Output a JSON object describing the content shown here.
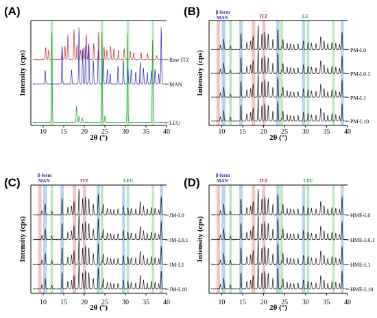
{
  "colors": {
    "raw_itz": "#e0202a",
    "man": "#1f1fd8",
    "leu": "#10b020",
    "black": "#111111",
    "itz_band": "#f3b8b8",
    "man_band": "#aacdee",
    "leu_band": "#a8e6b0",
    "annot_blue": "#2a2ad0",
    "annot_red": "#e02020",
    "annot_green": "#20b040"
  },
  "chart_data": [
    {
      "panel": "(A)",
      "type": "line",
      "xlabel": "2θ (°)",
      "ylabel": "Intensity (cps)",
      "xlim": [
        7,
        40
      ],
      "xticks": [
        10,
        15,
        20,
        25,
        30,
        35,
        40
      ],
      "grid": false,
      "series": [
        {
          "name": "Raw ITZ",
          "color": "raw_itz",
          "offset": 3,
          "peaks": [
            [
              10.6,
              0.45
            ],
            [
              11.3,
              0.35
            ],
            [
              14.6,
              0.4
            ],
            [
              15.3,
              0.5
            ],
            [
              16.0,
              0.9
            ],
            [
              17.5,
              1.1
            ],
            [
              18.2,
              0.55
            ],
            [
              19.1,
              0.35
            ],
            [
              19.9,
              0.45
            ],
            [
              20.5,
              0.9
            ],
            [
              21.0,
              0.5
            ],
            [
              22.3,
              0.6
            ],
            [
              23.5,
              1.0
            ],
            [
              24.8,
              0.45
            ],
            [
              25.5,
              0.35
            ],
            [
              26.4,
              0.5
            ],
            [
              27.2,
              0.4
            ],
            [
              28.3,
              0.35
            ],
            [
              29.7,
              0.4
            ],
            [
              31.2,
              0.3
            ],
            [
              32.0,
              0.25
            ],
            [
              33.8,
              0.25
            ],
            [
              35.4,
              0.2
            ],
            [
              37.6,
              0.15
            ]
          ]
        },
        {
          "name": "MAN",
          "color": "man",
          "offset": 1.8,
          "peaks": [
            [
              10.5,
              0.45
            ],
            [
              14.6,
              1.3
            ],
            [
              16.9,
              0.5
            ],
            [
              18.7,
              1.9
            ],
            [
              19.6,
              1.2
            ],
            [
              20.3,
              1.3
            ],
            [
              21.1,
              1.4
            ],
            [
              22.2,
              0.8
            ],
            [
              23.4,
              1.2
            ],
            [
              24.6,
              0.9
            ],
            [
              25.6,
              0.5
            ],
            [
              26.3,
              0.35
            ],
            [
              28.2,
              0.6
            ],
            [
              29.5,
              0.8
            ],
            [
              30.6,
              0.55
            ],
            [
              31.4,
              0.5
            ],
            [
              32.5,
              0.4
            ],
            [
              33.6,
              0.75
            ],
            [
              34.4,
              0.55
            ],
            [
              35.3,
              0.4
            ],
            [
              36.3,
              0.45
            ],
            [
              37.2,
              0.5
            ],
            [
              38.1,
              0.35
            ],
            [
              38.7,
              1.9
            ]
          ]
        },
        {
          "name": "LEU",
          "color": "leu",
          "offset": 0,
          "peaks": [
            [
              12.1,
              3.6
            ],
            [
              18.1,
              0.65
            ],
            [
              18.7,
              0.25
            ],
            [
              19.5,
              0.2
            ],
            [
              24.3,
              3.5
            ],
            [
              25.0,
              0.25
            ],
            [
              30.5,
              3.4
            ],
            [
              36.6,
              3.3
            ]
          ]
        }
      ]
    },
    {
      "panel": "(B)",
      "type": "line",
      "xlabel": "2θ (°)",
      "ylabel": "Intensity (cps)",
      "xlim": [
        7,
        40
      ],
      "xticks": [
        10,
        15,
        20,
        25,
        30,
        35,
        40
      ],
      "annotations": [
        {
          "text": "β-form",
          "color": "annot_blue"
        },
        {
          "text": "MAN",
          "color": "annot_blue"
        },
        {
          "text": "ITZ",
          "color": "annot_red"
        },
        {
          "text": "LE",
          "color": "annot_green"
        }
      ],
      "series": [
        {
          "name": "PM-L0",
          "offset": 3
        },
        {
          "name": "PM-L0.1",
          "offset": 2
        },
        {
          "name": "PM-L1",
          "offset": 1
        },
        {
          "name": "PM-L10",
          "offset": 0
        }
      ]
    },
    {
      "panel": "(C)",
      "type": "line",
      "xlabel": "2θ (°)",
      "ylabel": "Intensity (cps)",
      "xlim": [
        7,
        40
      ],
      "xticks": [
        10,
        15,
        20,
        25,
        30,
        35,
        40
      ],
      "annotations": [
        {
          "text": "β-form",
          "color": "annot_blue"
        },
        {
          "text": "MAN",
          "color": "annot_blue"
        },
        {
          "text": "ITZ",
          "color": "annot_red"
        },
        {
          "text": "LEU",
          "color": "annot_green"
        }
      ],
      "series": [
        {
          "name": "JM-L0",
          "offset": 3
        },
        {
          "name": "JM-L0.1",
          "offset": 2
        },
        {
          "name": "JM-L1",
          "offset": 1
        },
        {
          "name": "JM-L10",
          "offset": 0
        }
      ]
    },
    {
      "panel": "(D)",
      "type": "line",
      "xlabel": "2θ (°)",
      "ylabel": "Intensity (cps)",
      "xlim": [
        7,
        40
      ],
      "xticks": [
        10,
        15,
        20,
        25,
        30,
        35,
        40
      ],
      "annotations": [
        {
          "text": "β-form",
          "color": "annot_blue"
        },
        {
          "text": "MAN",
          "color": "annot_blue"
        },
        {
          "text": "ITZ",
          "color": "annot_red"
        },
        {
          "text": "LEU",
          "color": "annot_green"
        }
      ],
      "series": [
        {
          "name": "HME-L0",
          "offset": 3
        },
        {
          "name": "HME-L0.1",
          "offset": 2
        },
        {
          "name": "HME-L1",
          "offset": 1
        },
        {
          "name": "HME-L10",
          "offset": 0
        }
      ]
    }
  ],
  "mixture_pattern": {
    "peaks": [
      [
        9.7,
        0.15
      ],
      [
        10.5,
        0.35
      ],
      [
        12.1,
        0.12
      ],
      [
        14.6,
        0.55
      ],
      [
        16.0,
        0.25
      ],
      [
        16.9,
        0.3
      ],
      [
        17.5,
        0.45
      ],
      [
        18.7,
        0.85
      ],
      [
        19.6,
        0.55
      ],
      [
        20.3,
        0.6
      ],
      [
        21.1,
        0.55
      ],
      [
        22.2,
        0.35
      ],
      [
        23.4,
        0.7
      ],
      [
        24.3,
        0.1
      ],
      [
        24.6,
        0.35
      ],
      [
        25.6,
        0.22
      ],
      [
        26.4,
        0.2
      ],
      [
        27.2,
        0.18
      ],
      [
        28.2,
        0.2
      ],
      [
        29.5,
        0.3
      ],
      [
        30.6,
        0.25
      ],
      [
        31.4,
        0.22
      ],
      [
        32.5,
        0.2
      ],
      [
        33.6,
        0.45
      ],
      [
        34.4,
        0.3
      ],
      [
        35.3,
        0.2
      ],
      [
        36.3,
        0.25
      ],
      [
        37.2,
        0.22
      ],
      [
        38.1,
        0.18
      ],
      [
        38.7,
        0.6
      ]
    ]
  },
  "bands": {
    "itz": [
      [
        8.8,
        9.6
      ],
      [
        17.2,
        18.0
      ],
      [
        19.7,
        20.4
      ]
    ],
    "man": [
      [
        10.0,
        10.9
      ],
      [
        14.2,
        15.0
      ],
      [
        23.0,
        23.8
      ],
      [
        29.2,
        29.9
      ],
      [
        38.4,
        39.1
      ]
    ],
    "leu": [
      [
        11.8,
        12.4
      ],
      [
        24.0,
        24.6
      ],
      [
        30.3,
        30.9
      ],
      [
        36.4,
        36.9
      ]
    ]
  },
  "bands_by_panel": {
    "(A)": [
      "leu"
    ],
    "(B)": [
      "itz",
      "man",
      "leu"
    ],
    "(C)": [
      "itz",
      "man",
      "leu"
    ],
    "(D)": [
      "itz",
      "man",
      "leu"
    ]
  }
}
